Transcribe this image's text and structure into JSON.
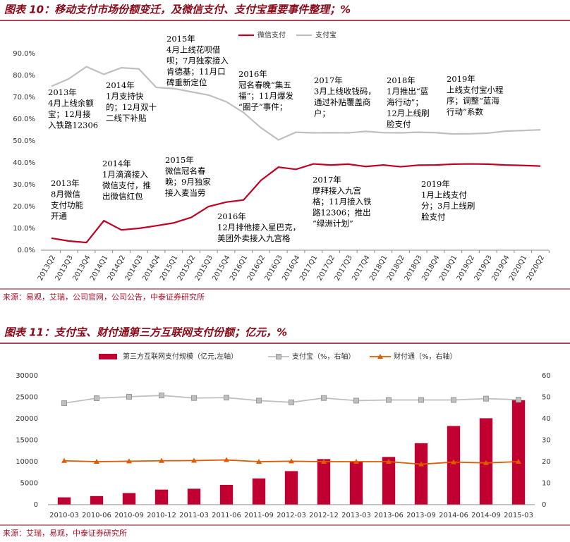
{
  "chart_data": [
    {
      "type": "line",
      "title": "图表 10：移动支付市场份额变迁，及微信支付、支付宝重要事件整理；%",
      "source": "来源：易观，艾瑞，公司官网，公司公告，中泰证券研究所",
      "categories": [
        "2013Q2",
        "2013Q3",
        "2013Q4",
        "2014Q1",
        "2014Q2",
        "2014Q3",
        "2014Q4",
        "2015Q1",
        "2015Q2",
        "2015Q3",
        "2015Q4",
        "2016Q1",
        "2016Q2",
        "2016Q3",
        "2016Q4",
        "2017Q1",
        "2017Q2",
        "2017Q3",
        "2017Q4",
        "2018Q1",
        "2018Q2",
        "2018Q3",
        "2018Q4",
        "2019Q1",
        "2019Q2",
        "2019Q3",
        "2019Q4",
        "2020Q1",
        "2020Q2"
      ],
      "series": [
        {
          "name": "微信支付",
          "color": "#c00022",
          "values": [
            5.5,
            4.2,
            3.5,
            13.5,
            9.3,
            10,
            11.2,
            12.5,
            15,
            20,
            22,
            23,
            32,
            38,
            37,
            39.5,
            39,
            39.4,
            38.3,
            39,
            38.2,
            38.9,
            39,
            39.4,
            39.5,
            39.4,
            39,
            38.8,
            38.5
          ]
        },
        {
          "name": "支付宝",
          "color": "#bfbfbf",
          "values": [
            75,
            78.5,
            84,
            80.5,
            83.5,
            83,
            74.5,
            74,
            72.5,
            71,
            68,
            63,
            56,
            50.5,
            54,
            53.7,
            53.8,
            53.7,
            54.4,
            53.8,
            53.7,
            54,
            53.8,
            53.2,
            53.3,
            53.6,
            54.5,
            54.8,
            55.1
          ]
        }
      ],
      "ylim": [
        0,
        90
      ],
      "yticks": [
        {
          "value": 0,
          "label": "0.0%"
        },
        {
          "value": 10,
          "label": "10.0%"
        },
        {
          "value": 20,
          "label": "20.0%"
        },
        {
          "value": 30,
          "label": "30.0%"
        },
        {
          "value": 40,
          "label": "40.0%"
        },
        {
          "value": 50,
          "label": "50.0%"
        },
        {
          "value": 60,
          "label": "60.0%"
        },
        {
          "value": 70,
          "label": "70.0%"
        },
        {
          "value": 80,
          "label": "80.0%"
        },
        {
          "value": 90,
          "label": "90.0%"
        }
      ],
      "legend": "top",
      "annotations": [
        [
          "2013年",
          "4月上线余额",
          "宝；12月接",
          "入铁路12306"
        ],
        [
          "2014年",
          "1月支持快",
          "的；12月双十",
          "二线下补贴"
        ],
        [
          "2015年",
          "4月上线花呗借",
          "呗；7月独家接入",
          "肯德基；11月口",
          "碑重新定位"
        ],
        [
          "2016年",
          "冠名春晚“集五",
          "福”；11月爆发",
          "“圈子”事件；"
        ],
        [
          "2017年",
          "3月上线收钱码，",
          "通过补贴覆盖商",
          "户；"
        ],
        [
          "2018年",
          "1月推出“蓝",
          "海行动”；",
          "12月上线刷",
          "脸支付"
        ],
        [
          "2019年",
          "上线支付宝小程",
          "序；调整“蓝海",
          "行动”系数"
        ],
        [
          "2013年",
          "8月微信",
          "支付功能",
          "开通"
        ],
        [
          "2014年",
          "1月滴滴接入",
          "微信支付，推",
          "出微信红包"
        ],
        [
          "2015年",
          "微信冠名春",
          "晚；9月独家",
          "接入麦当劳"
        ],
        [
          "2016年",
          "12月排他接入星巴克，",
          "美团外卖接入九宫格"
        ],
        [
          "2017年",
          "摩拜接入九宫",
          "格；11月接入铁",
          "路12306；推出",
          "“绿洲计划”"
        ],
        [
          "2019年",
          "1月上线支付",
          "分；3月上线刷",
          "脸支付"
        ]
      ]
    },
    {
      "type": "combo",
      "title": "图表 11：支付宝、财付通第三方互联网支付份额；亿元，%",
      "source": "来源：艾瑞，易观，中泰证券研究所",
      "categories": [
        "2010-03",
        "2010-06",
        "2010-09",
        "2010-12",
        "2011-03",
        "2011-06",
        "2011-09",
        "2012-03",
        "2012-12",
        "2013-03",
        "2013-06",
        "2013-09",
        "2014-06",
        "2014-09",
        "2015-03"
      ],
      "series": [
        {
          "name": "第三方互联网支付规模（亿元,左轴）",
          "type": "bar",
          "color": "#c00030",
          "values": [
            1700,
            2000,
            2700,
            3500,
            3700,
            4600,
            6100,
            7800,
            10600,
            10100,
            11100,
            14300,
            18300,
            20100,
            24300
          ]
        },
        {
          "name": "支付宝（%，右轴）",
          "type": "line",
          "axis": "y2",
          "marker": "square",
          "color": "#bfbfbf",
          "values": [
            47.2,
            49.5,
            50.2,
            50.8,
            49.6,
            49.8,
            48.4,
            47.6,
            49.6,
            48.4,
            48.7,
            48.7,
            48.7,
            49.3,
            48.8
          ]
        },
        {
          "name": "财付通（%，右轴）",
          "type": "line",
          "axis": "y2",
          "marker": "triangle",
          "color": "#e05a00",
          "values": [
            20.4,
            20,
            20.2,
            20.4,
            20.5,
            20.8,
            20,
            20.2,
            20,
            20,
            20,
            18.8,
            19.8,
            19.4,
            20
          ]
        }
      ],
      "ylim": [
        0,
        30000
      ],
      "yticks": [
        0,
        5000,
        10000,
        15000,
        20000,
        25000,
        30000
      ],
      "y2lim": [
        0,
        60
      ],
      "y2ticks": [
        0,
        10,
        20,
        30,
        40,
        50,
        60
      ],
      "legend": "top"
    }
  ]
}
